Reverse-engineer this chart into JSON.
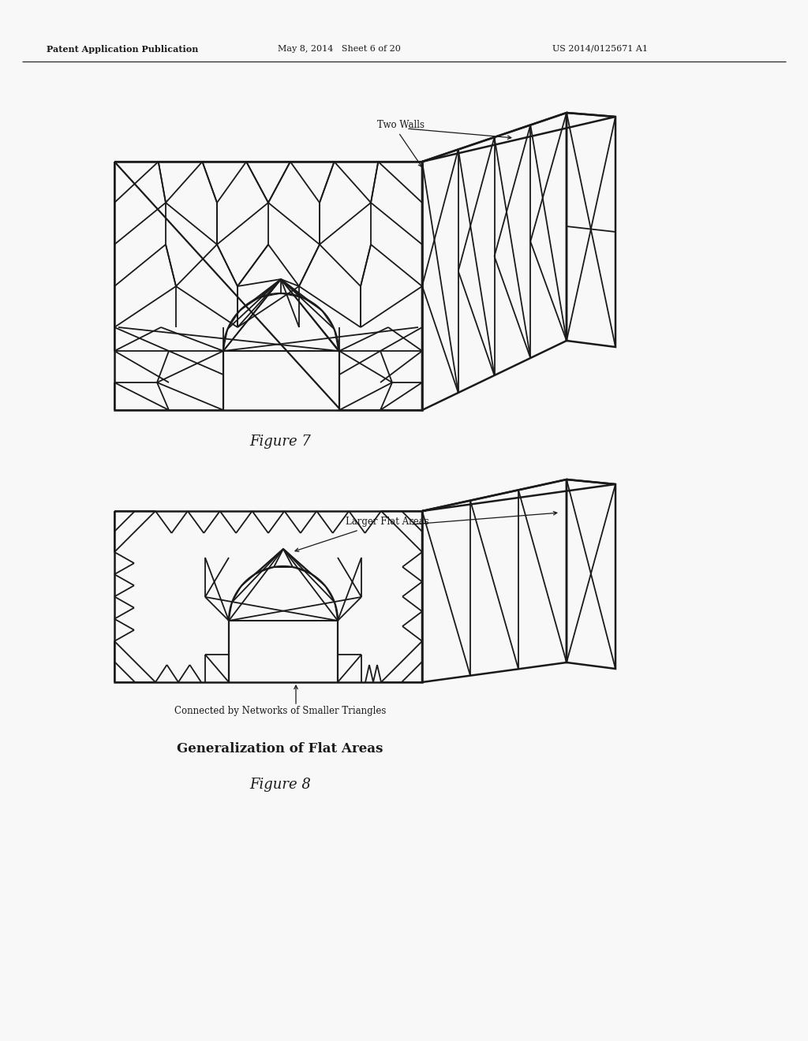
{
  "page_color": "#f8f8f8",
  "line_color": "#1a1a1a",
  "line_width": 1.3,
  "header_left": "Patent Application Publication",
  "header_mid": "May 8, 2014   Sheet 6 of 20",
  "header_right": "US 2014/0125671 A1",
  "fig7_caption": "Figure 7",
  "fig8_caption": "Figure 8",
  "fig7_annot": "Two Walls",
  "fig8_annot1": "Larger Flat Areas",
  "fig8_annot2": "Connected by Networks of Smaller Triangles",
  "fig8_subtitle": "Generalization of Flat Areas"
}
